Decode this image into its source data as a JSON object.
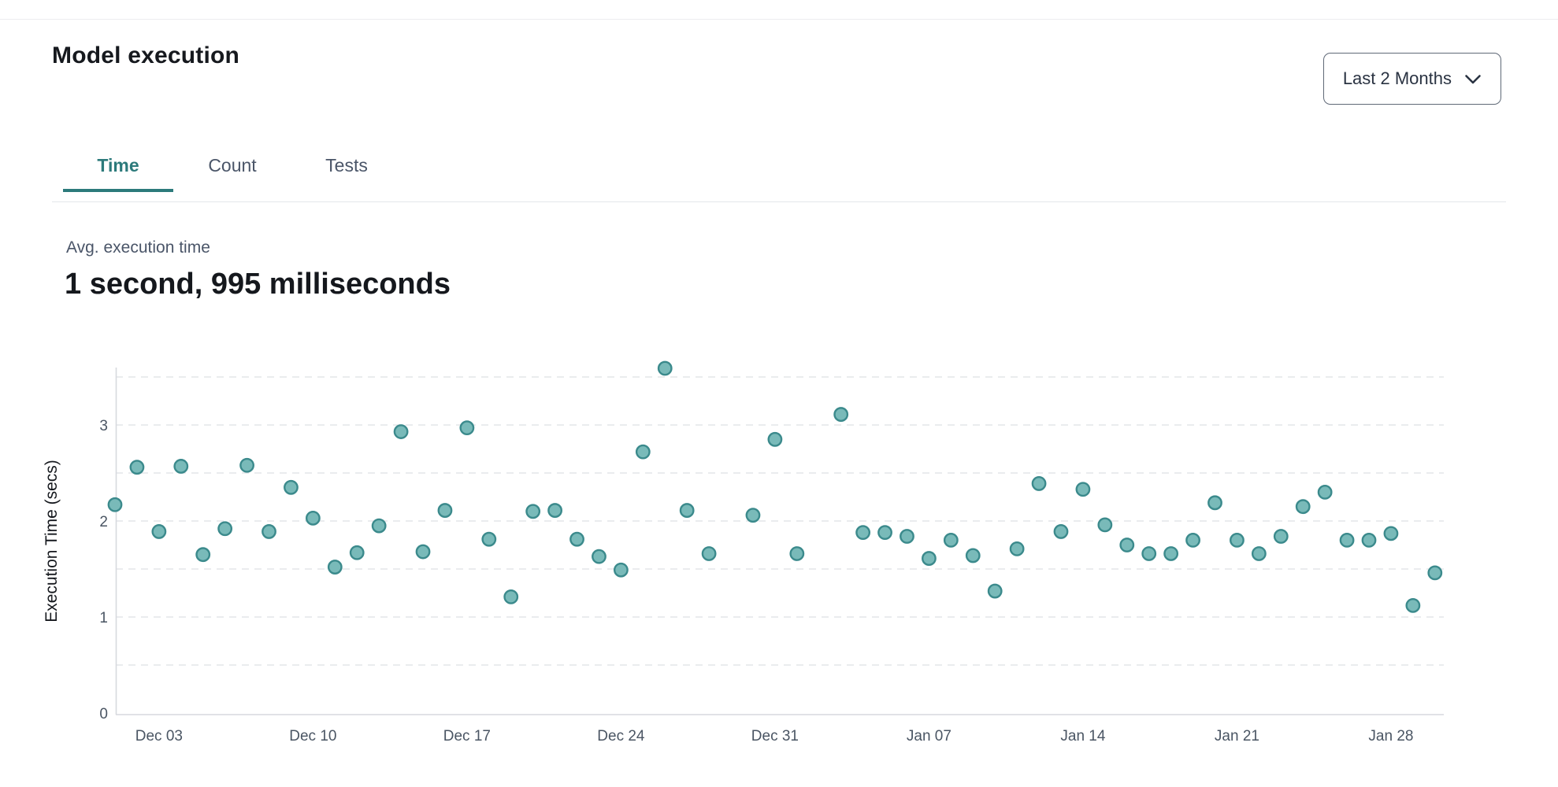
{
  "page": {
    "title": "Model execution",
    "range_selector": {
      "label": "Last 2 Months",
      "icon": "chevron-down-icon"
    },
    "tabs": [
      {
        "label": "Time",
        "active": true
      },
      {
        "label": "Count",
        "active": false
      },
      {
        "label": "Tests",
        "active": false
      }
    ],
    "stat": {
      "label": "Avg. execution time",
      "value": "1 second, 995 milliseconds"
    }
  },
  "colors": {
    "accent_teal": "#2c7a7b",
    "point_fill": "#79bab9",
    "point_stroke": "#3b8a8c",
    "grid_line": "#e4e5e9",
    "axis_line": "#d7d9de",
    "tick_text": "#4a5563",
    "muted_text": "#4a5568",
    "dark_text": "#15181d"
  },
  "chart_data": {
    "type": "scatter",
    "title": "",
    "xlabel": "",
    "ylabel": "Execution Time (secs)",
    "ylim": [
      0,
      3.6
    ],
    "yticks": [
      0,
      1,
      2,
      3
    ],
    "grid": "horizontal dashed every 0.5",
    "legend": "none",
    "x_ticks": [
      {
        "day": 2,
        "label": "Dec 03"
      },
      {
        "day": 9,
        "label": "Dec 10"
      },
      {
        "day": 16,
        "label": "Dec 17"
      },
      {
        "day": 23,
        "label": "Dec 24"
      },
      {
        "day": 30,
        "label": "Dec 31"
      },
      {
        "day": 37,
        "label": "Jan 07"
      },
      {
        "day": 44,
        "label": "Jan 14"
      },
      {
        "day": 51,
        "label": "Jan 21"
      },
      {
        "day": 58,
        "label": "Jan 28"
      }
    ],
    "points": [
      {
        "date": "Dec 01",
        "day": 0,
        "value": 2.17
      },
      {
        "date": "Dec 02",
        "day": 1,
        "value": 2.56
      },
      {
        "date": "Dec 03",
        "day": 2,
        "value": 1.89
      },
      {
        "date": "Dec 04",
        "day": 3,
        "value": 2.57
      },
      {
        "date": "Dec 05",
        "day": 4,
        "value": 1.65
      },
      {
        "date": "Dec 06",
        "day": 5,
        "value": 1.92
      },
      {
        "date": "Dec 07",
        "day": 6,
        "value": 2.58
      },
      {
        "date": "Dec 08",
        "day": 7,
        "value": 1.89
      },
      {
        "date": "Dec 09",
        "day": 8,
        "value": 2.35
      },
      {
        "date": "Dec 10",
        "day": 9,
        "value": 2.03
      },
      {
        "date": "Dec 11",
        "day": 10,
        "value": 1.52
      },
      {
        "date": "Dec 12",
        "day": 11,
        "value": 1.67
      },
      {
        "date": "Dec 13",
        "day": 12,
        "value": 1.95
      },
      {
        "date": "Dec 14",
        "day": 13,
        "value": 2.93
      },
      {
        "date": "Dec 15",
        "day": 14,
        "value": 1.68
      },
      {
        "date": "Dec 16",
        "day": 15,
        "value": 2.11
      },
      {
        "date": "Dec 17",
        "day": 16,
        "value": 2.97
      },
      {
        "date": "Dec 18",
        "day": 17,
        "value": 1.81
      },
      {
        "date": "Dec 19",
        "day": 18,
        "value": 1.21
      },
      {
        "date": "Dec 20",
        "day": 19,
        "value": 2.1
      },
      {
        "date": "Dec 21",
        "day": 20,
        "value": 2.11
      },
      {
        "date": "Dec 22",
        "day": 21,
        "value": 1.81
      },
      {
        "date": "Dec 23",
        "day": 22,
        "value": 1.63
      },
      {
        "date": "Dec 24",
        "day": 23,
        "value": 1.49
      },
      {
        "date": "Dec 25",
        "day": 24,
        "value": 2.72
      },
      {
        "date": "Dec 26",
        "day": 25,
        "value": 3.59
      },
      {
        "date": "Dec 27",
        "day": 26,
        "value": 2.11
      },
      {
        "date": "Dec 28",
        "day": 27,
        "value": 1.66
      },
      {
        "date": "Dec 30",
        "day": 29,
        "value": 2.06
      },
      {
        "date": "Dec 31",
        "day": 30,
        "value": 2.85
      },
      {
        "date": "Jan 01",
        "day": 31,
        "value": 1.66
      },
      {
        "date": "Jan 03",
        "day": 33,
        "value": 3.11
      },
      {
        "date": "Jan 04",
        "day": 34,
        "value": 1.88
      },
      {
        "date": "Jan 05",
        "day": 35,
        "value": 1.88
      },
      {
        "date": "Jan 06",
        "day": 36,
        "value": 1.84
      },
      {
        "date": "Jan 07",
        "day": 37,
        "value": 1.61
      },
      {
        "date": "Jan 08",
        "day": 38,
        "value": 1.8
      },
      {
        "date": "Jan 09",
        "day": 39,
        "value": 1.64
      },
      {
        "date": "Jan 10",
        "day": 40,
        "value": 1.27
      },
      {
        "date": "Jan 11",
        "day": 41,
        "value": 1.71
      },
      {
        "date": "Jan 12",
        "day": 42,
        "value": 2.39
      },
      {
        "date": "Jan 13",
        "day": 43,
        "value": 1.89
      },
      {
        "date": "Jan 14",
        "day": 44,
        "value": 2.33
      },
      {
        "date": "Jan 15",
        "day": 45,
        "value": 1.96
      },
      {
        "date": "Jan 16",
        "day": 46,
        "value": 1.75
      },
      {
        "date": "Jan 17",
        "day": 47,
        "value": 1.66
      },
      {
        "date": "Jan 18",
        "day": 48,
        "value": 1.66
      },
      {
        "date": "Jan 19",
        "day": 49,
        "value": 1.8
      },
      {
        "date": "Jan 20",
        "day": 50,
        "value": 2.19
      },
      {
        "date": "Jan 21",
        "day": 51,
        "value": 1.8
      },
      {
        "date": "Jan 22",
        "day": 52,
        "value": 1.66
      },
      {
        "date": "Jan 23",
        "day": 53,
        "value": 1.84
      },
      {
        "date": "Jan 24",
        "day": 54,
        "value": 2.15
      },
      {
        "date": "Jan 25",
        "day": 55,
        "value": 2.3
      },
      {
        "date": "Jan 26",
        "day": 56,
        "value": 1.8
      },
      {
        "date": "Jan 27",
        "day": 57,
        "value": 1.8
      },
      {
        "date": "Jan 28",
        "day": 58,
        "value": 1.87
      },
      {
        "date": "Jan 29",
        "day": 59,
        "value": 1.12
      },
      {
        "date": "Jan 30",
        "day": 60,
        "value": 1.46
      }
    ]
  }
}
